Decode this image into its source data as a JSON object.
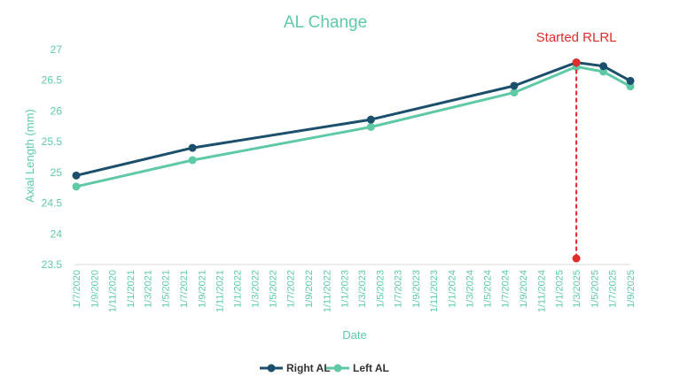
{
  "chart_data": {
    "type": "line",
    "title": "AL Change",
    "xlabel": "Date",
    "ylabel": "Axial Length (mm)",
    "ylim": [
      23.5,
      27
    ],
    "yticks": [
      "23.5",
      "24",
      "24.5",
      "25",
      "25.5",
      "26",
      "26.5",
      "27"
    ],
    "xticks": [
      "1/7/2020",
      "1/9/2020",
      "1/11/2020",
      "1/1/2021",
      "1/3/2021",
      "1/5/2021",
      "1/7/2021",
      "1/9/2021",
      "1/11/2021",
      "1/1/2022",
      "1/3/2022",
      "1/5/2022",
      "1/7/2022",
      "1/9/2022",
      "1/11/2022",
      "1/1/2023",
      "1/3/2023",
      "1/5/2023",
      "1/7/2023",
      "1/9/2023",
      "1/11/2023",
      "1/1/2024",
      "1/3/2024",
      "1/5/2024",
      "1/7/2024",
      "1/9/2024",
      "1/11/2024",
      "1/1/2025",
      "1/3/2025",
      "1/5/2025",
      "1/7/2025",
      "1/9/2025"
    ],
    "grid": false,
    "legend_position": "bottom",
    "series": [
      {
        "name": "Right AL",
        "color": "#1b4f6b",
        "points": [
          {
            "x": "2020-07-01",
            "y": 24.95
          },
          {
            "x": "2021-08-01",
            "y": 25.4
          },
          {
            "x": "2023-04-01",
            "y": 25.86
          },
          {
            "x": "2024-08-01",
            "y": 26.41
          },
          {
            "x": "2025-03-01",
            "y": 26.79
          },
          {
            "x": "2025-06-01",
            "y": 26.73
          },
          {
            "x": "2025-09-01",
            "y": 26.49
          }
        ]
      },
      {
        "name": "Left AL",
        "color": "#5fc9a6",
        "points": [
          {
            "x": "2020-07-01",
            "y": 24.77
          },
          {
            "x": "2021-08-01",
            "y": 25.2
          },
          {
            "x": "2023-04-01",
            "y": 25.74
          },
          {
            "x": "2024-08-01",
            "y": 26.3
          },
          {
            "x": "2025-03-01",
            "y": 26.72
          },
          {
            "x": "2025-06-01",
            "y": 26.64
          },
          {
            "x": "2025-09-01",
            "y": 26.4
          }
        ]
      }
    ],
    "annotations": [
      {
        "text": "Started RLRL",
        "type": "vertical-dashed-line",
        "x": "2025-03-01",
        "y_from": 23.6,
        "y_to": 26.79,
        "color": "#e02d2d"
      }
    ]
  }
}
